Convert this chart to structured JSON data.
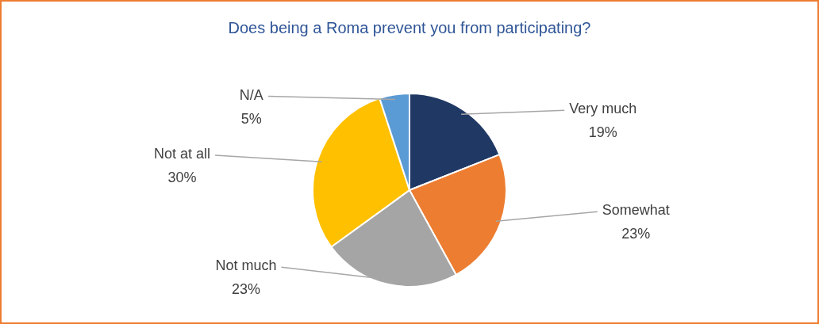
{
  "chart_data": {
    "type": "pie",
    "title": "Does being a Roma prevent you from participating?",
    "categories": [
      "Very much",
      "Somewhat",
      "Not much",
      "Not at all",
      "N/A"
    ],
    "values": [
      19,
      23,
      23,
      30,
      5
    ],
    "colors": [
      "#203864",
      "#ed7d31",
      "#a5a5a5",
      "#ffc000",
      "#5b9bd5"
    ],
    "value_labels": [
      "19%",
      "23%",
      "23%",
      "30%",
      "5%"
    ]
  }
}
